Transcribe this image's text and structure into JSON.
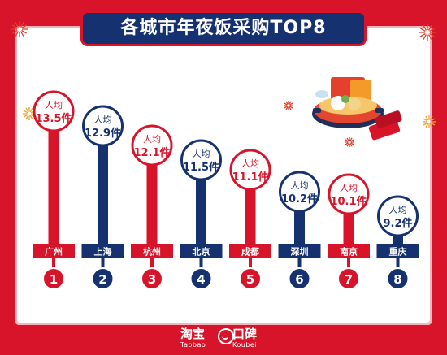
{
  "chart_data": {
    "type": "bar",
    "title": "各城市年夜饭采购TOP8",
    "categories": [
      "广州",
      "上海",
      "杭州",
      "北京",
      "成都",
      "深圳",
      "南京",
      "重庆"
    ],
    "ranks": [
      "1",
      "2",
      "3",
      "4",
      "5",
      "6",
      "7",
      "8"
    ],
    "values": [
      13.5,
      12.9,
      12.1,
      11.5,
      11.1,
      10.2,
      10.1,
      9.2
    ],
    "value_labels": [
      "13.5件",
      "12.9件",
      "12.1件",
      "11.5件",
      "11.1件",
      "10.2件",
      "10.1件",
      "9.2件"
    ],
    "label_prefix": "人均",
    "xlabel": "",
    "ylabel": "",
    "colors": {
      "red": "#d8142a",
      "navy": "#163170"
    }
  },
  "footer": {
    "taobao": "淘宝",
    "taobao_en": "Taobao",
    "koubei": "口碑",
    "koubei_en": "Koubei"
  },
  "decor": {
    "hotpot_icon": "hotpot-illustration",
    "firework_icon": "firework-icon"
  }
}
